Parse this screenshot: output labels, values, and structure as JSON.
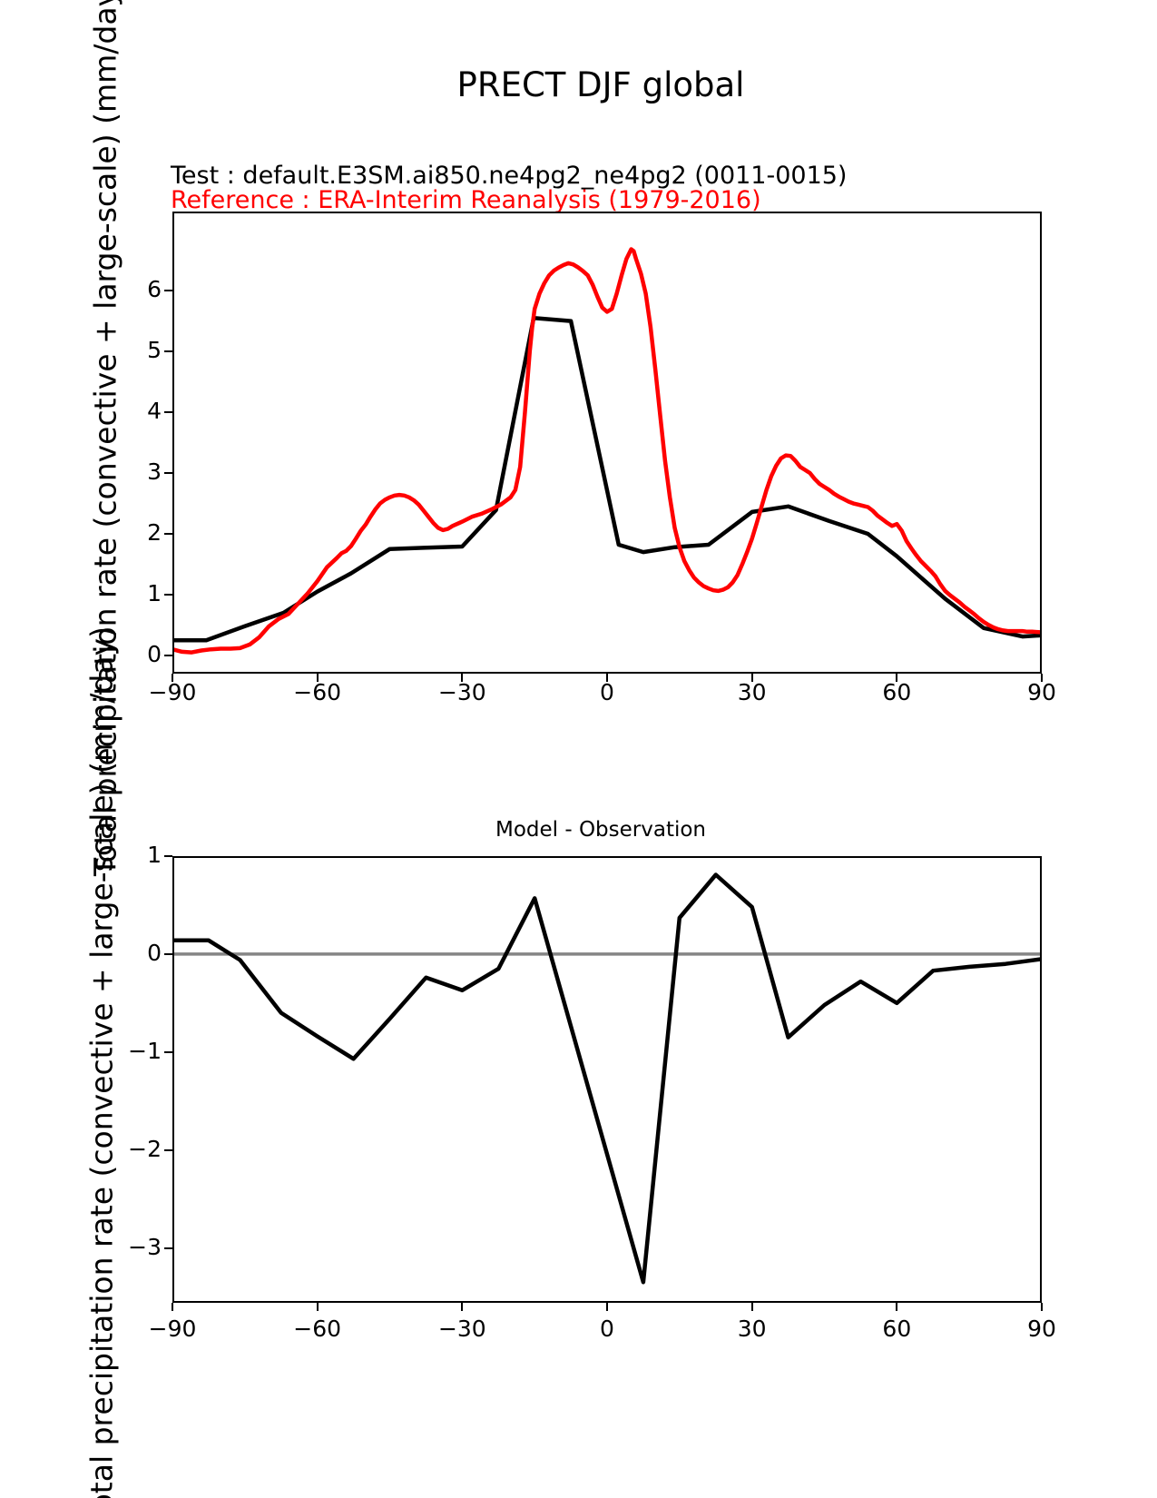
{
  "header": {
    "title": "PRECT DJF global",
    "test_label": "Test : default.E3SM.ai850.ne4pg2_ne4pg2 (0011-0015)",
    "reference_label": "Reference : ERA-Interim Reanalysis (1979-2016)",
    "test_color": "#000000",
    "reference_color": "#ff0000"
  },
  "axes": {
    "ylabel": "Total precipitation rate (convective + large-scale) (mm/day)"
  },
  "chart_data": [
    {
      "type": "line",
      "title": "PRECT DJF global",
      "xlabel": "",
      "ylabel": "Total precipitation rate (convective + large-scale) (mm/day)",
      "xlim": [
        -90,
        90
      ],
      "ylim": [
        -0.3,
        7.3
      ],
      "grid": false,
      "legend": "none",
      "xticks": {
        "values": [
          -90,
          -60,
          -30,
          0,
          30,
          60,
          90
        ],
        "labels": [
          "−90",
          "−60",
          "−30",
          "0",
          "30",
          "60",
          "90"
        ]
      },
      "yticks": {
        "values": [
          0,
          1,
          2,
          3,
          4,
          5,
          6
        ],
        "labels": [
          "0",
          "1",
          "2",
          "3",
          "4",
          "5",
          "6"
        ]
      },
      "series": [
        {
          "name": "Test: default.E3SM.ai850.ne4pg2_ne4pg2 (0011-0015)",
          "color": "#000000",
          "linewidth": 4.5,
          "points": [
            [
              -90,
              0.25
            ],
            [
              -83,
              0.25
            ],
            [
              -75,
              0.48
            ],
            [
              -67,
              0.7
            ],
            [
              -60,
              1.05
            ],
            [
              -53,
              1.35
            ],
            [
              -45,
              1.75
            ],
            [
              -38,
              1.77
            ],
            [
              -30,
              1.79
            ],
            [
              -23,
              2.39
            ],
            [
              -15.2,
              5.55
            ],
            [
              -7.5,
              5.5
            ],
            [
              2.4,
              1.82
            ],
            [
              7.5,
              1.7
            ],
            [
              14,
              1.78
            ],
            [
              21,
              1.82
            ],
            [
              30,
              2.36
            ],
            [
              37.5,
              2.45
            ],
            [
              46,
              2.21
            ],
            [
              54,
              2.0
            ],
            [
              60,
              1.63
            ],
            [
              70,
              0.93
            ],
            [
              78,
              0.45
            ],
            [
              86,
              0.31
            ],
            [
              90,
              0.33
            ]
          ]
        },
        {
          "name": "Reference: ERA-Interim Reanalysis (1979-2016)",
          "color": "#ff0000",
          "linewidth": 4.5,
          "points": [
            [
              -90,
              0.1
            ],
            [
              -88,
              0.06
            ],
            [
              -86,
              0.05
            ],
            [
              -84,
              0.08
            ],
            [
              -82,
              0.1
            ],
            [
              -80,
              0.11
            ],
            [
              -78,
              0.11
            ],
            [
              -76,
              0.12
            ],
            [
              -74,
              0.18
            ],
            [
              -72,
              0.3
            ],
            [
              -70,
              0.48
            ],
            [
              -68,
              0.6
            ],
            [
              -66,
              0.68
            ],
            [
              -64,
              0.85
            ],
            [
              -62,
              1.02
            ],
            [
              -60,
              1.22
            ],
            [
              -58,
              1.45
            ],
            [
              -56,
              1.6
            ],
            [
              -55,
              1.68
            ],
            [
              -54,
              1.72
            ],
            [
              -53,
              1.8
            ],
            [
              -52,
              1.92
            ],
            [
              -51,
              2.05
            ],
            [
              -50,
              2.15
            ],
            [
              -49,
              2.28
            ],
            [
              -48,
              2.4
            ],
            [
              -47,
              2.5
            ],
            [
              -46,
              2.56
            ],
            [
              -45,
              2.6
            ],
            [
              -44,
              2.63
            ],
            [
              -43,
              2.64
            ],
            [
              -42,
              2.63
            ],
            [
              -41,
              2.6
            ],
            [
              -40,
              2.55
            ],
            [
              -39,
              2.48
            ],
            [
              -38,
              2.38
            ],
            [
              -37,
              2.28
            ],
            [
              -36,
              2.18
            ],
            [
              -35,
              2.1
            ],
            [
              -34,
              2.06
            ],
            [
              -33,
              2.08
            ],
            [
              -32,
              2.13
            ],
            [
              -30,
              2.2
            ],
            [
              -28,
              2.28
            ],
            [
              -26,
              2.33
            ],
            [
              -24,
              2.4
            ],
            [
              -22,
              2.48
            ],
            [
              -20,
              2.6
            ],
            [
              -19,
              2.72
            ],
            [
              -18,
              3.1
            ],
            [
              -17,
              4.0
            ],
            [
              -16,
              5.0
            ],
            [
              -15.5,
              5.4
            ],
            [
              -15,
              5.7
            ],
            [
              -14,
              5.95
            ],
            [
              -13,
              6.12
            ],
            [
              -12,
              6.25
            ],
            [
              -11,
              6.33
            ],
            [
              -10,
              6.38
            ],
            [
              -9,
              6.42
            ],
            [
              -8,
              6.45
            ],
            [
              -7,
              6.43
            ],
            [
              -6,
              6.38
            ],
            [
              -5,
              6.32
            ],
            [
              -4,
              6.25
            ],
            [
              -3,
              6.1
            ],
            [
              -2,
              5.9
            ],
            [
              -1,
              5.72
            ],
            [
              0,
              5.65
            ],
            [
              1,
              5.7
            ],
            [
              2,
              5.95
            ],
            [
              3,
              6.25
            ],
            [
              4,
              6.52
            ],
            [
              5,
              6.68
            ],
            [
              5.5,
              6.65
            ],
            [
              6,
              6.52
            ],
            [
              7,
              6.28
            ],
            [
              8,
              5.95
            ],
            [
              9,
              5.4
            ],
            [
              10,
              4.7
            ],
            [
              11,
              3.95
            ],
            [
              12,
              3.2
            ],
            [
              13,
              2.6
            ],
            [
              14,
              2.1
            ],
            [
              15,
              1.78
            ],
            [
              16,
              1.55
            ],
            [
              17,
              1.4
            ],
            [
              18,
              1.28
            ],
            [
              19,
              1.2
            ],
            [
              20,
              1.14
            ],
            [
              21,
              1.1
            ],
            [
              22,
              1.07
            ],
            [
              23,
              1.06
            ],
            [
              24,
              1.08
            ],
            [
              25,
              1.12
            ],
            [
              26,
              1.2
            ],
            [
              27,
              1.32
            ],
            [
              28,
              1.5
            ],
            [
              29,
              1.7
            ],
            [
              30,
              1.92
            ],
            [
              31,
              2.18
            ],
            [
              32,
              2.45
            ],
            [
              33,
              2.72
            ],
            [
              34,
              2.95
            ],
            [
              35,
              3.12
            ],
            [
              36,
              3.24
            ],
            [
              37,
              3.29
            ],
            [
              38,
              3.28
            ],
            [
              39,
              3.2
            ],
            [
              40,
              3.1
            ],
            [
              41,
              3.05
            ],
            [
              42,
              3.0
            ],
            [
              43,
              2.9
            ],
            [
              44,
              2.82
            ],
            [
              45,
              2.77
            ],
            [
              46,
              2.72
            ],
            [
              47,
              2.66
            ],
            [
              48,
              2.61
            ],
            [
              49,
              2.57
            ],
            [
              50,
              2.53
            ],
            [
              51,
              2.5
            ],
            [
              52,
              2.48
            ],
            [
              53,
              2.46
            ],
            [
              54,
              2.44
            ],
            [
              55,
              2.38
            ],
            [
              56,
              2.3
            ],
            [
              57,
              2.24
            ],
            [
              58,
              2.18
            ],
            [
              59,
              2.13
            ],
            [
              60,
              2.16
            ],
            [
              61,
              2.05
            ],
            [
              62,
              1.88
            ],
            [
              63,
              1.76
            ],
            [
              64,
              1.65
            ],
            [
              65,
              1.55
            ],
            [
              66,
              1.47
            ],
            [
              67,
              1.39
            ],
            [
              68,
              1.3
            ],
            [
              69,
              1.17
            ],
            [
              70,
              1.06
            ],
            [
              71,
              0.99
            ],
            [
              72,
              0.93
            ],
            [
              73,
              0.87
            ],
            [
              74,
              0.8
            ],
            [
              75,
              0.74
            ],
            [
              76,
              0.68
            ],
            [
              77,
              0.61
            ],
            [
              78,
              0.55
            ],
            [
              79,
              0.5
            ],
            [
              80,
              0.46
            ],
            [
              81,
              0.43
            ],
            [
              82,
              0.41
            ],
            [
              83,
              0.4
            ],
            [
              84,
              0.4
            ],
            [
              85,
              0.4
            ],
            [
              86,
              0.4
            ],
            [
              87,
              0.39
            ],
            [
              88,
              0.39
            ],
            [
              90,
              0.38
            ]
          ]
        }
      ]
    },
    {
      "type": "line",
      "title": "Model - Observation",
      "xlabel": "",
      "ylabel": "Total precipitation rate (convective + large-scale) (mm/day)",
      "xlim": [
        -90,
        90
      ],
      "ylim": [
        -3.56,
        1.0
      ],
      "grid": false,
      "legend": "none",
      "xticks": {
        "values": [
          -90,
          -60,
          -30,
          0,
          30,
          60,
          90
        ],
        "labels": [
          "−90",
          "−60",
          "−30",
          "0",
          "30",
          "60",
          "90"
        ]
      },
      "yticks": {
        "values": [
          1,
          0,
          -1,
          -2,
          -3
        ],
        "labels": [
          "1",
          "0",
          "−1",
          "−2",
          "−3"
        ]
      },
      "reference_line": {
        "y": 0,
        "color": "#858585",
        "linewidth": 3.5
      },
      "series": [
        {
          "name": "Model - Observation difference",
          "color": "#000000",
          "linewidth": 4.5,
          "points": [
            [
              -90,
              0.14
            ],
            [
              -82.5,
              0.14
            ],
            [
              -76,
              -0.06
            ],
            [
              -67.5,
              -0.6
            ],
            [
              -60,
              -0.84
            ],
            [
              -52.5,
              -1.07
            ],
            [
              -45,
              -0.66
            ],
            [
              -37.5,
              -0.24
            ],
            [
              -30,
              -0.37
            ],
            [
              -22.5,
              -0.15
            ],
            [
              -15,
              0.57
            ],
            [
              7.5,
              -3.35
            ],
            [
              15,
              0.37
            ],
            [
              22.5,
              0.81
            ],
            [
              30,
              0.48
            ],
            [
              37.5,
              -0.85
            ],
            [
              45,
              -0.52
            ],
            [
              52.5,
              -0.28
            ],
            [
              60,
              -0.5
            ],
            [
              67.5,
              -0.17
            ],
            [
              75,
              -0.13
            ],
            [
              82.5,
              -0.1
            ],
            [
              90,
              -0.05
            ]
          ]
        }
      ]
    }
  ]
}
